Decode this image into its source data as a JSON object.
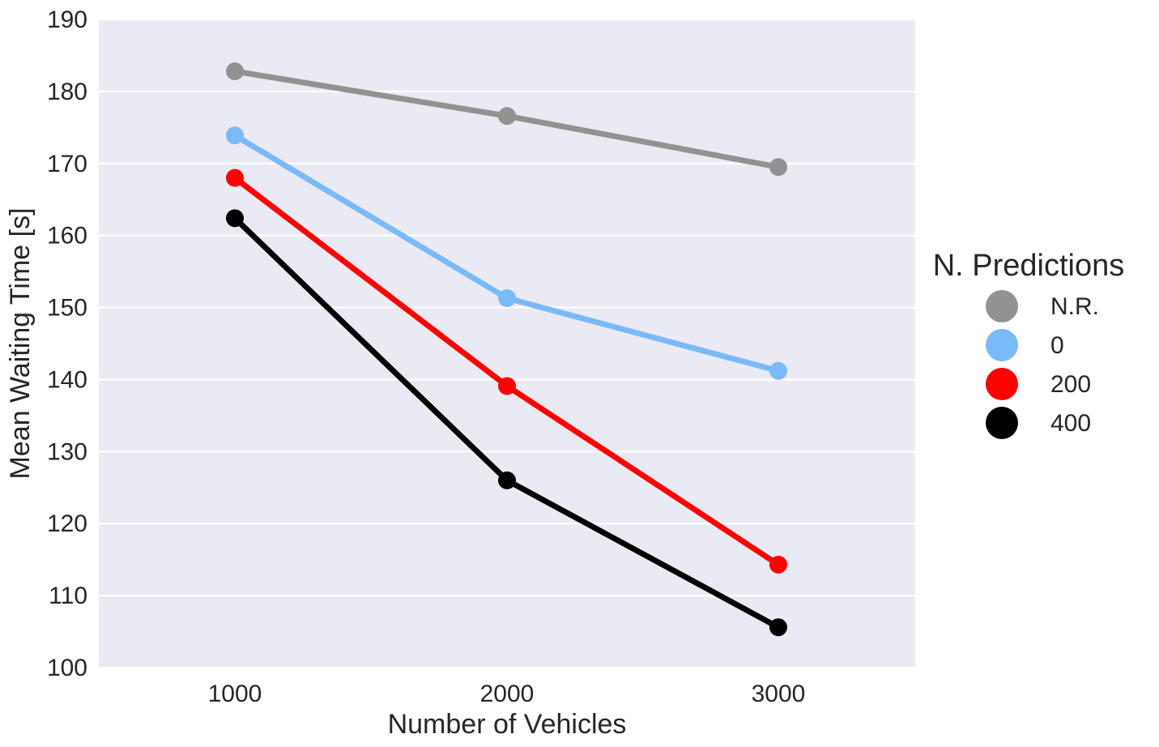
{
  "chart_data": {
    "type": "line",
    "x": [
      1000,
      2000,
      3000
    ],
    "xlabel": "Number of Vehicles",
    "ylabel": "Mean Waiting Time [s]",
    "ylim": [
      100,
      190
    ],
    "yticks": [
      100,
      110,
      120,
      130,
      140,
      150,
      160,
      170,
      180,
      190
    ],
    "xtick_labels": [
      "1000",
      "2000",
      "3000"
    ],
    "grid": true,
    "legend": {
      "title": "N. Predictions",
      "placement": "right"
    },
    "series": [
      {
        "name": "N.R.",
        "color": "#929292",
        "values": [
          182.8,
          176.6,
          169.5
        ]
      },
      {
        "name": "0",
        "color": "#79baf9",
        "values": [
          173.9,
          151.3,
          141.2
        ]
      },
      {
        "name": "200",
        "color": "#ff0000",
        "values": [
          168.0,
          139.1,
          114.3
        ]
      },
      {
        "name": "400",
        "color": "#000000",
        "values": [
          162.4,
          126.0,
          105.6
        ]
      }
    ]
  }
}
